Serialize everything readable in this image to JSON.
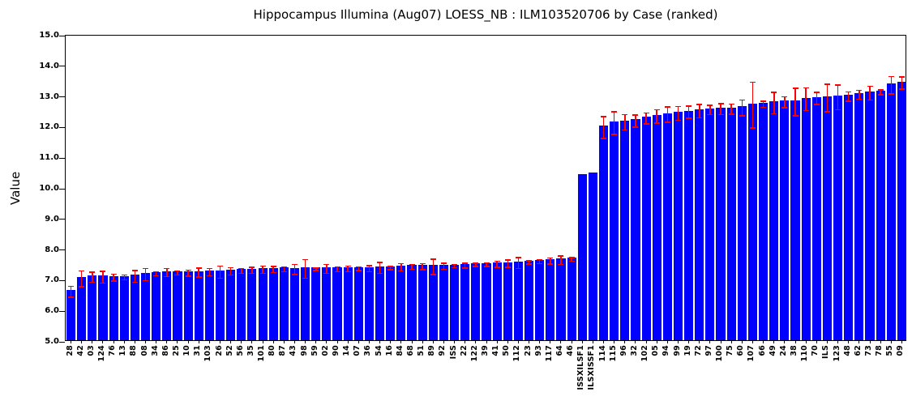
{
  "title": "Hippocampus Illumina (Aug07) LOESS_NB : ILM103520706 by Case (ranked)",
  "y_axis": {
    "label": "Value",
    "tick_labels": [
      "5.0",
      "6.0",
      "7.0",
      "8.0",
      "9.0",
      "10.0",
      "11.0",
      "12.0",
      "13.0",
      "14.0",
      "15.0"
    ],
    "min": 5.0,
    "max": 15.0
  },
  "colors": {
    "bar": "#0000ff",
    "error_bar": "#ff0000",
    "axis": "#000000",
    "background": "#ffffff"
  },
  "chart_data": {
    "type": "bar",
    "title": "Hippocampus Illumina (Aug07) LOESS_NB : ILM103520706 by Case (ranked)",
    "xlabel": "",
    "ylabel": "Value",
    "ylim": [
      5.0,
      15.0
    ],
    "grid": false,
    "legend": false,
    "error_bars": true,
    "categories": [
      "28",
      "42",
      "03",
      "124",
      "76",
      "13",
      "88",
      "08",
      "34",
      "86",
      "25",
      "10",
      "31",
      "103",
      "26",
      "52",
      "56",
      "35",
      "101",
      "80",
      "87",
      "43",
      "98",
      "59",
      "02",
      "90",
      "14",
      "07",
      "36",
      "54",
      "16",
      "84",
      "68",
      "51",
      "89",
      "92",
      "ISS",
      "22",
      "122",
      "39",
      "41",
      "50",
      "112",
      "23",
      "93",
      "117",
      "64",
      "46",
      "ISSXILSF1",
      "ILSXISSF1",
      "114",
      "115",
      "96",
      "32",
      "102",
      "05",
      "94",
      "99",
      "19",
      "72",
      "97",
      "100",
      "75",
      "60",
      "107",
      "66",
      "49",
      "24",
      "38",
      "110",
      "70",
      "ILS",
      "123",
      "48",
      "62",
      "73",
      "78",
      "55",
      "09"
    ],
    "values": [
      6.63,
      7.06,
      7.11,
      7.11,
      7.1,
      7.1,
      7.14,
      7.2,
      7.22,
      7.26,
      7.25,
      7.24,
      7.26,
      7.27,
      7.28,
      7.3,
      7.32,
      7.33,
      7.35,
      7.36,
      7.37,
      7.36,
      7.38,
      7.37,
      7.38,
      7.37,
      7.38,
      7.39,
      7.39,
      7.41,
      7.41,
      7.43,
      7.45,
      7.45,
      7.45,
      7.47,
      7.47,
      7.49,
      7.51,
      7.52,
      7.53,
      7.55,
      7.57,
      7.59,
      7.62,
      7.64,
      7.66,
      7.69,
      10.42,
      10.48,
      12.0,
      12.14,
      12.17,
      12.21,
      12.3,
      12.36,
      12.42,
      12.46,
      12.5,
      12.53,
      12.57,
      12.6,
      12.6,
      12.64,
      12.73,
      12.76,
      12.8,
      12.82,
      12.83,
      12.92,
      12.95,
      12.96,
      12.98,
      13.01,
      13.07,
      13.12,
      13.15,
      13.38,
      13.45
    ],
    "errors": [
      0.18,
      0.26,
      0.16,
      0.19,
      0.11,
      0.08,
      0.19,
      0.2,
      0.07,
      0.13,
      0.07,
      0.1,
      0.15,
      0.12,
      0.2,
      0.12,
      0.08,
      0.1,
      0.12,
      0.1,
      0.08,
      0.17,
      0.3,
      0.04,
      0.14,
      0.08,
      0.09,
      0.06,
      0.1,
      0.18,
      0.05,
      0.12,
      0.08,
      0.1,
      0.25,
      0.1,
      0.05,
      0.08,
      0.05,
      0.06,
      0.1,
      0.12,
      0.18,
      0.05,
      0.07,
      0.1,
      0.14,
      0.06,
      0,
      0,
      0.36,
      0.37,
      0.25,
      0.2,
      0.18,
      0.22,
      0.25,
      0.22,
      0.2,
      0.22,
      0.15,
      0.18,
      0.17,
      0.26,
      0.75,
      0.1,
      0.35,
      0.18,
      0.45,
      0.37,
      0.2,
      0.45,
      0.4,
      0.15,
      0.15,
      0.22,
      0.08,
      0.28,
      0.2
    ]
  }
}
